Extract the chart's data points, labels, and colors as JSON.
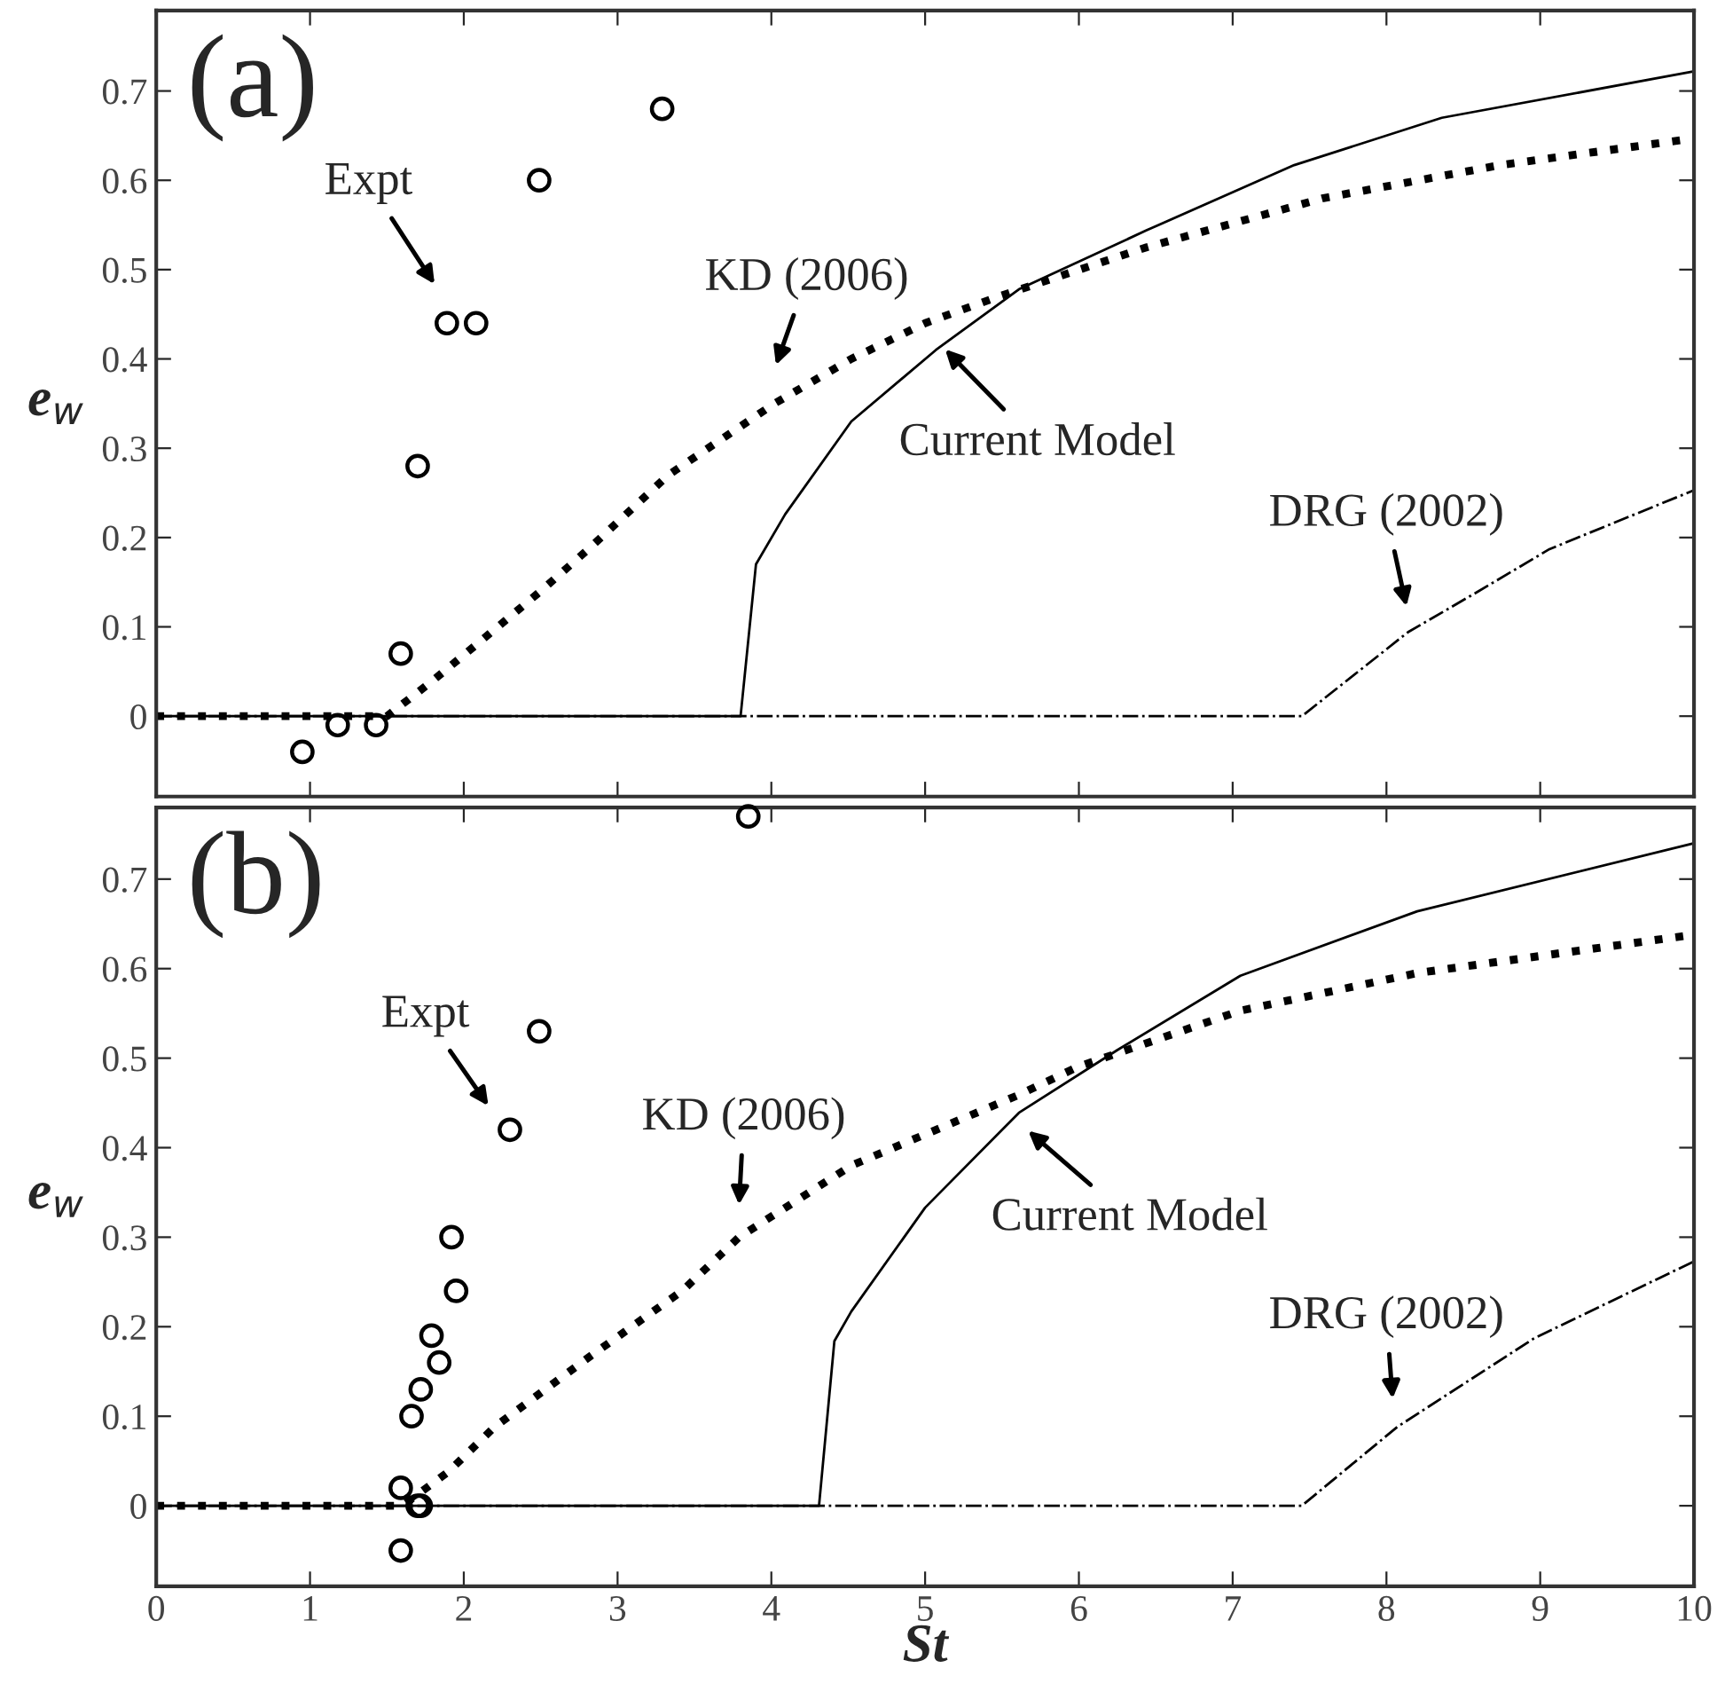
{
  "chart_data": [
    {
      "type": "line",
      "xlim": [
        0,
        10
      ],
      "xticks": [
        0,
        1,
        2,
        3,
        4,
        5,
        6,
        7,
        8,
        9,
        10
      ],
      "ylim": [
        -0.09,
        0.79
      ],
      "yticks": [
        0,
        0.1,
        0.2,
        0.3,
        0.4,
        0.5,
        0.6,
        0.7
      ],
      "ylabel": "e$_{w}$",
      "tick_labels": "y",
      "grid": false,
      "legend": false,
      "series": [
        {
          "type": "scatter",
          "marker": "circle",
          "color": "#000000",
          "x": [
            0.95,
            1.18,
            1.43,
            1.59,
            1.7,
            1.89,
            2.08,
            2.49,
            3.29
          ],
          "values": [
            -0.04,
            -0.01,
            -0.01,
            0.07,
            0.28,
            0.44,
            0.44,
            0.6,
            0.68
          ]
        },
        {
          "line_style": "dotted",
          "color": "#000000",
          "x": [
            0,
            1.5,
            1.8,
            2.13,
            2.5,
            2.83,
            3.33,
            4.02,
            4.52,
            5.0,
            5.48,
            6.44,
            7.59,
            8.74,
            10
          ],
          "values": [
            0,
            0,
            0.04,
            0.087,
            0.14,
            0.19,
            0.27,
            0.35,
            0.4,
            0.44,
            0.47,
            0.525,
            0.58,
            0.617,
            0.647
          ]
        },
        {
          "line_style": "solid",
          "color": "#000000",
          "x": [
            0,
            3.8,
            3.9,
            4.09,
            4.52,
            5.07,
            5.61,
            6.44,
            7.4,
            8.36,
            10
          ],
          "values": [
            0,
            0,
            0.17,
            0.226,
            0.33,
            0.41,
            0.478,
            0.544,
            0.617,
            0.67,
            0.722
          ]
        },
        {
          "line_style": "dashdot",
          "color": "#000000",
          "x": [
            0,
            7.45,
            8.14,
            8.6,
            9.06,
            10
          ],
          "values": [
            0,
            0,
            0.094,
            0.14,
            0.187,
            0.253
          ]
        }
      ],
      "annotations": [
        "(a)",
        "Expt",
        "KD (2006)",
        "Current Model",
        "DRG (2002)"
      ]
    },
    {
      "type": "line",
      "xlim": [
        0,
        10
      ],
      "xticks": [
        0,
        1,
        2,
        3,
        4,
        5,
        6,
        7,
        8,
        9,
        10
      ],
      "ylim": [
        -0.09,
        0.78
      ],
      "yticks": [
        0,
        0.1,
        0.2,
        0.3,
        0.4,
        0.5,
        0.6,
        0.7
      ],
      "xlabel": "St",
      "ylabel": "e$_{w}$",
      "grid": false,
      "legend": false,
      "series": [
        {
          "type": "scatter",
          "marker": "circle",
          "color": "#000000",
          "x": [
            1.59,
            1.59,
            1.7,
            1.72,
            1.66,
            1.72,
            1.79,
            1.84,
            1.92,
            1.95,
            2.3,
            2.49,
            3.85
          ],
          "values": [
            -0.05,
            0.02,
            0,
            0,
            0.1,
            0.13,
            0.19,
            0.16,
            0.3,
            0.24,
            0.42,
            0.53,
            0.77
          ]
        },
        {
          "line_style": "dotted",
          "color": "#000000",
          "x": [
            0,
            1.6,
            1.9,
            2.2,
            2.83,
            3.42,
            3.79,
            4.52,
            5.61,
            5.99,
            7.05,
            8.2,
            10
          ],
          "values": [
            0,
            0,
            0.038,
            0.088,
            0.168,
            0.24,
            0.3,
            0.38,
            0.459,
            0.49,
            0.553,
            0.595,
            0.638
          ]
        },
        {
          "line_style": "solid",
          "color": "#000000",
          "x": [
            0,
            4.31,
            4.41,
            4.52,
            5.0,
            5.61,
            6.25,
            7.05,
            8.2,
            10
          ],
          "values": [
            0,
            0,
            0.184,
            0.217,
            0.333,
            0.439,
            0.509,
            0.592,
            0.664,
            0.74
          ]
        },
        {
          "line_style": "dashdot",
          "color": "#000000",
          "x": [
            0,
            7.45,
            8.07,
            8.96,
            10
          ],
          "values": [
            0,
            0,
            0.088,
            0.187,
            0.273
          ]
        }
      ],
      "annotations": [
        "(b)",
        "Expt",
        "KD (2006)",
        "Current Model",
        "DRG (2002)"
      ]
    }
  ]
}
